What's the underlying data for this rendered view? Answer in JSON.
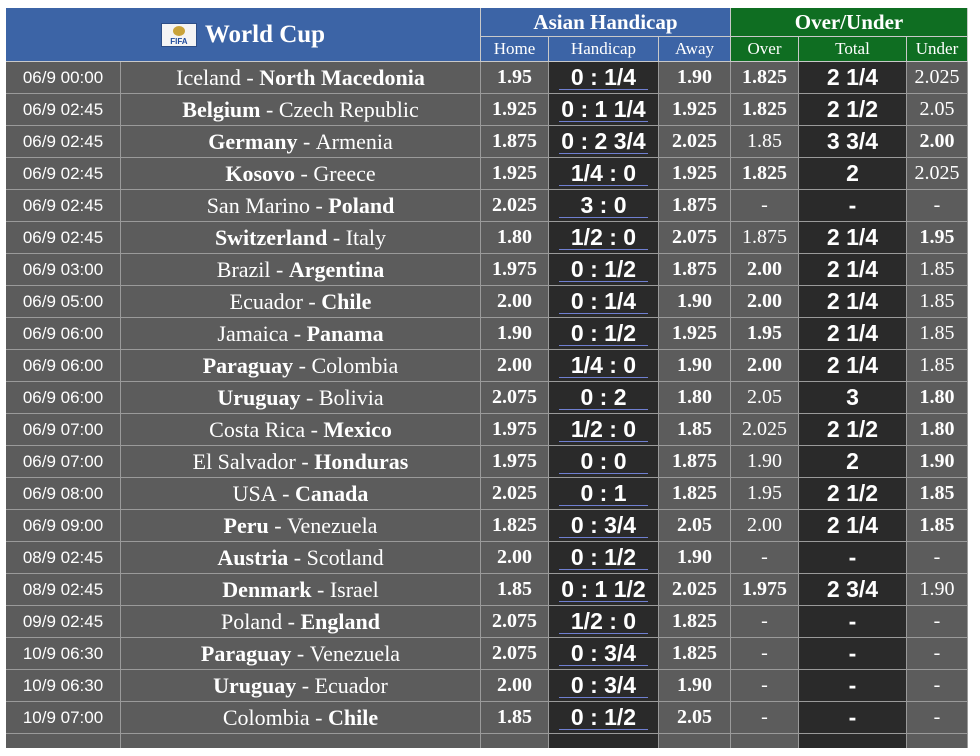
{
  "header": {
    "title": "World Cup",
    "logo_text": "FIFA",
    "asian_handicap": "Asian Handicap",
    "over_under": "Over/Under",
    "cols": {
      "home": "Home",
      "handicap": "Handicap",
      "away": "Away",
      "over": "Over",
      "total": "Total",
      "under": "Under"
    }
  },
  "colors": {
    "header_blue": "#3c64a6",
    "header_green": "#0f6e22",
    "cell_gray": "#5c5c5c",
    "cell_dark": "#2a2a2a"
  },
  "matches": [
    {
      "date": "06/9 00:00",
      "home": "Iceland",
      "away": "North Macedonia",
      "fav": "away",
      "home_odds": "1.95",
      "handicap": "0 : 1/4",
      "away_odds": "1.90",
      "over": "1.825",
      "total": "2 1/4",
      "under": "2.025",
      "ou_fav": "over"
    },
    {
      "date": "06/9 02:45",
      "home": "Belgium",
      "away": "Czech Republic",
      "fav": "home",
      "home_odds": "1.925",
      "handicap": "0 : 1 1/4",
      "away_odds": "1.925",
      "over": "1.825",
      "total": "2 1/2",
      "under": "2.05",
      "ou_fav": "over"
    },
    {
      "date": "06/9 02:45",
      "home": "Germany",
      "away": "Armenia",
      "fav": "home",
      "home_odds": "1.875",
      "handicap": "0 : 2 3/4",
      "away_odds": "2.025",
      "over": "1.85",
      "total": "3 3/4",
      "under": "2.00",
      "ou_fav": "under"
    },
    {
      "date": "06/9 02:45",
      "home": "Kosovo",
      "away": "Greece",
      "fav": "home",
      "home_odds": "1.925",
      "handicap": "1/4 : 0",
      "away_odds": "1.925",
      "over": "1.825",
      "total": "2",
      "under": "2.025",
      "ou_fav": "over"
    },
    {
      "date": "06/9 02:45",
      "home": "San Marino",
      "away": "Poland",
      "fav": "away",
      "home_odds": "2.025",
      "handicap": "3 : 0",
      "away_odds": "1.875",
      "over": "-",
      "total": "-",
      "under": "-",
      "ou_fav": "none"
    },
    {
      "date": "06/9 02:45",
      "home": "Switzerland",
      "away": "Italy",
      "fav": "home",
      "home_odds": "1.80",
      "handicap": "1/2 : 0",
      "away_odds": "2.075",
      "over": "1.875",
      "total": "2 1/4",
      "under": "1.95",
      "ou_fav": "under"
    },
    {
      "date": "06/9 03:00",
      "home": "Brazil",
      "away": "Argentina",
      "fav": "away",
      "home_odds": "1.975",
      "handicap": "0 : 1/2",
      "away_odds": "1.875",
      "over": "2.00",
      "total": "2 1/4",
      "under": "1.85",
      "ou_fav": "over"
    },
    {
      "date": "06/9 05:00",
      "home": "Ecuador",
      "away": "Chile",
      "fav": "away",
      "home_odds": "2.00",
      "handicap": "0 : 1/4",
      "away_odds": "1.90",
      "over": "2.00",
      "total": "2 1/4",
      "under": "1.85",
      "ou_fav": "over"
    },
    {
      "date": "06/9 06:00",
      "home": "Jamaica",
      "away": "Panama",
      "fav": "away",
      "home_odds": "1.90",
      "handicap": "0 : 1/2",
      "away_odds": "1.925",
      "over": "1.95",
      "total": "2 1/4",
      "under": "1.85",
      "ou_fav": "over"
    },
    {
      "date": "06/9 06:00",
      "home": "Paraguay",
      "away": "Colombia",
      "fav": "home",
      "home_odds": "2.00",
      "handicap": "1/4 : 0",
      "away_odds": "1.90",
      "over": "2.00",
      "total": "2 1/4",
      "under": "1.85",
      "ou_fav": "over"
    },
    {
      "date": "06/9 06:00",
      "home": "Uruguay",
      "away": "Bolivia",
      "fav": "home",
      "home_odds": "2.075",
      "handicap": "0 : 2",
      "away_odds": "1.80",
      "over": "2.05",
      "total": "3",
      "under": "1.80",
      "ou_fav": "under"
    },
    {
      "date": "06/9 07:00",
      "home": "Costa Rica",
      "away": "Mexico",
      "fav": "away",
      "home_odds": "1.975",
      "handicap": "1/2 : 0",
      "away_odds": "1.85",
      "over": "2.025",
      "total": "2 1/2",
      "under": "1.80",
      "ou_fav": "under"
    },
    {
      "date": "06/9 07:00",
      "home": "El Salvador",
      "away": "Honduras",
      "fav": "away",
      "home_odds": "1.975",
      "handicap": "0 : 0",
      "away_odds": "1.875",
      "over": "1.90",
      "total": "2",
      "under": "1.90",
      "ou_fav": "under"
    },
    {
      "date": "06/9 08:00",
      "home": "USA",
      "away": "Canada",
      "fav": "away",
      "home_odds": "2.025",
      "handicap": "0 : 1",
      "away_odds": "1.825",
      "over": "1.95",
      "total": "2 1/2",
      "under": "1.85",
      "ou_fav": "under"
    },
    {
      "date": "06/9 09:00",
      "home": "Peru",
      "away": "Venezuela",
      "fav": "home",
      "home_odds": "1.825",
      "handicap": "0 : 3/4",
      "away_odds": "2.05",
      "over": "2.00",
      "total": "2 1/4",
      "under": "1.85",
      "ou_fav": "under"
    },
    {
      "date": "08/9 02:45",
      "home": "Austria",
      "away": "Scotland",
      "fav": "home",
      "home_odds": "2.00",
      "handicap": "0 : 1/2",
      "away_odds": "1.90",
      "over": "-",
      "total": "-",
      "under": "-",
      "ou_fav": "none"
    },
    {
      "date": "08/9 02:45",
      "home": "Denmark",
      "away": "Israel",
      "fav": "home",
      "home_odds": "1.85",
      "handicap": "0 : 1 1/2",
      "away_odds": "2.025",
      "over": "1.975",
      "total": "2 3/4",
      "under": "1.90",
      "ou_fav": "over"
    },
    {
      "date": "09/9 02:45",
      "home": "Poland",
      "away": "England",
      "fav": "away",
      "home_odds": "2.075",
      "handicap": "1/2 : 0",
      "away_odds": "1.825",
      "over": "-",
      "total": "-",
      "under": "-",
      "ou_fav": "none"
    },
    {
      "date": "10/9 06:30",
      "home": "Paraguay",
      "away": "Venezuela",
      "fav": "home",
      "home_odds": "2.075",
      "handicap": "0 : 3/4",
      "away_odds": "1.825",
      "over": "-",
      "total": "-",
      "under": "-",
      "ou_fav": "none"
    },
    {
      "date": "10/9 06:30",
      "home": "Uruguay",
      "away": "Ecuador",
      "fav": "home",
      "home_odds": "2.00",
      "handicap": "0 : 3/4",
      "away_odds": "1.90",
      "over": "-",
      "total": "-",
      "under": "-",
      "ou_fav": "none"
    },
    {
      "date": "10/9 07:00",
      "home": "Colombia",
      "away": "Chile",
      "fav": "away",
      "home_odds": "1.85",
      "handicap": "0 : 1/2",
      "away_odds": "2.05",
      "over": "-",
      "total": "-",
      "under": "-",
      "ou_fav": "none"
    }
  ]
}
